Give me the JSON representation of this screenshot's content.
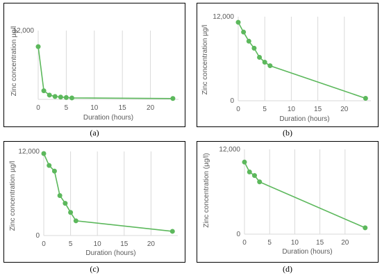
{
  "colors": {
    "series": "#5cb85c",
    "grid": "#d9d9d9",
    "frame": "#000000",
    "text": "#595959"
  },
  "chart_data": [
    {
      "type": "line",
      "caption": "(a)",
      "xlabel": "Duration (hours)",
      "ylabel": "Zinc concentration µg/l",
      "xlim": [
        0,
        25
      ],
      "ylim": [
        0,
        12000
      ],
      "xticks": [
        "0",
        "5",
        "10",
        "15",
        "20"
      ],
      "yticks": [
        "12,000"
      ],
      "grid": "vertical",
      "series": [
        {
          "x": [
            0,
            1,
            2,
            3,
            4,
            5,
            6,
            24
          ],
          "y": [
            9200,
            1500,
            750,
            500,
            400,
            320,
            250,
            150
          ]
        }
      ]
    },
    {
      "type": "line",
      "caption": "(b)",
      "xlabel": "Duration (hours)",
      "ylabel": "Zinc concentration µg/l",
      "xlim": [
        0,
        25
      ],
      "ylim": [
        0,
        12000
      ],
      "xticks": [
        "0",
        "5",
        "10",
        "15",
        "20"
      ],
      "yticks": [
        "0",
        "12,000"
      ],
      "grid": "vertical",
      "series": [
        {
          "x": [
            0,
            1,
            2,
            3,
            4,
            5,
            6,
            24
          ],
          "y": [
            11200,
            9800,
            8500,
            7500,
            6200,
            5500,
            5000,
            350
          ]
        }
      ]
    },
    {
      "type": "line",
      "caption": "(c)",
      "xlabel": "Duration (hours)",
      "ylabel": "Zinc concentration µg/l",
      "xlim": [
        0,
        25
      ],
      "ylim": [
        0,
        12000
      ],
      "xticks": [
        "0",
        "5",
        "10",
        "15",
        "20"
      ],
      "yticks": [
        "0",
        "12,000"
      ],
      "grid": "vertical",
      "series": [
        {
          "x": [
            0,
            1,
            2,
            3,
            4,
            5,
            6,
            24
          ],
          "y": [
            11700,
            10000,
            9200,
            5700,
            4600,
            3300,
            2100,
            600
          ]
        }
      ]
    },
    {
      "type": "line",
      "caption": "(d)",
      "xlabel": "Duration (hours)",
      "ylabel": "Zinc concentration (µg/l)",
      "xlim": [
        0,
        25
      ],
      "ylim": [
        0,
        12000
      ],
      "xticks": [
        "0",
        "5",
        "10",
        "15",
        "20"
      ],
      "yticks": [
        "0",
        "12,000"
      ],
      "grid": "vertical",
      "series": [
        {
          "x": [
            0,
            1,
            2,
            3,
            24
          ],
          "y": [
            10200,
            8800,
            8300,
            7400,
            900
          ]
        }
      ]
    }
  ]
}
